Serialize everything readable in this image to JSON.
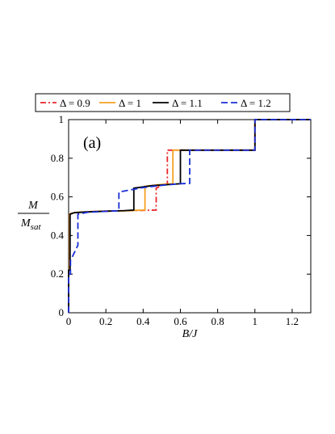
{
  "chart_data": {
    "type": "line",
    "panel_label": "(a)",
    "xlabel": "B/J",
    "ylabel_numerator": "M",
    "ylabel_denominator_main": "M",
    "ylabel_denominator_sub": "sat",
    "xlim": [
      0,
      1.3
    ],
    "ylim": [
      0,
      1
    ],
    "xticks": [
      {
        "value": 0,
        "label": "0"
      },
      {
        "value": 0.2,
        "label": "0.2"
      },
      {
        "value": 0.4,
        "label": "0.4"
      },
      {
        "value": 0.6,
        "label": "0.6"
      },
      {
        "value": 0.8,
        "label": "0.8"
      },
      {
        "value": 1,
        "label": "1"
      },
      {
        "value": 1.2,
        "label": "1.2"
      }
    ],
    "yticks": [
      {
        "value": 0,
        "label": "0"
      },
      {
        "value": 0.2,
        "label": "0.2"
      },
      {
        "value": 0.4,
        "label": "0.4"
      },
      {
        "value": 0.6,
        "label": "0.6"
      },
      {
        "value": 0.8,
        "label": "0.8"
      },
      {
        "value": 1,
        "label": "1"
      }
    ],
    "grid": false,
    "legend_placement": "top",
    "series": [
      {
        "name": "Δ = 0.9",
        "color": "#e8242a",
        "dash": "dashdot",
        "x": [
          0.0,
          0.0,
          0.005,
          0.005,
          0.012,
          0.05,
          0.15,
          0.3,
          0.4,
          0.47,
          0.47,
          0.5,
          0.53,
          0.53,
          1.0,
          1.0,
          1.3
        ],
        "y": [
          0.0,
          0.22,
          0.22,
          0.505,
          0.515,
          0.52,
          0.525,
          0.528,
          0.53,
          0.532,
          0.645,
          0.66,
          0.665,
          0.842,
          0.842,
          1.0,
          1.0
        ]
      },
      {
        "name": "Δ = 1",
        "color": "#f5a020",
        "dash": "solid",
        "x": [
          0.0,
          0.0,
          0.005,
          0.005,
          0.015,
          0.05,
          0.15,
          0.3,
          0.35,
          0.41,
          0.41,
          0.5,
          0.56,
          0.56,
          1.0,
          1.0,
          1.3
        ],
        "y": [
          0.0,
          0.22,
          0.22,
          0.51,
          0.515,
          0.52,
          0.525,
          0.528,
          0.53,
          0.532,
          0.655,
          0.665,
          0.668,
          0.842,
          0.842,
          1.0,
          1.0
        ]
      },
      {
        "name": "Δ = 1.1",
        "color": "#000000",
        "dash": "solid",
        "x": [
          0.0,
          0.0,
          0.008,
          0.008,
          0.03,
          0.1,
          0.2,
          0.3,
          0.35,
          0.35,
          0.45,
          0.55,
          0.6,
          0.6,
          1.0,
          1.0,
          1.3
        ],
        "y": [
          0.0,
          0.22,
          0.22,
          0.51,
          0.518,
          0.522,
          0.526,
          0.529,
          0.532,
          0.645,
          0.658,
          0.665,
          0.668,
          0.842,
          0.842,
          1.0,
          1.0
        ]
      },
      {
        "name": "Δ = 1.2",
        "color": "#1a2ed6",
        "dash": "dashed",
        "x": [
          0.0,
          0.0,
          0.01,
          0.01,
          0.035,
          0.05,
          0.05,
          0.1,
          0.2,
          0.27,
          0.27,
          0.4,
          0.5,
          0.6,
          0.65,
          0.65,
          1.0,
          1.0,
          1.3
        ],
        "y": [
          0.0,
          0.2,
          0.2,
          0.27,
          0.32,
          0.35,
          0.51,
          0.52,
          0.525,
          0.528,
          0.625,
          0.648,
          0.66,
          0.668,
          0.67,
          0.842,
          0.842,
          1.0,
          1.0
        ]
      }
    ]
  }
}
